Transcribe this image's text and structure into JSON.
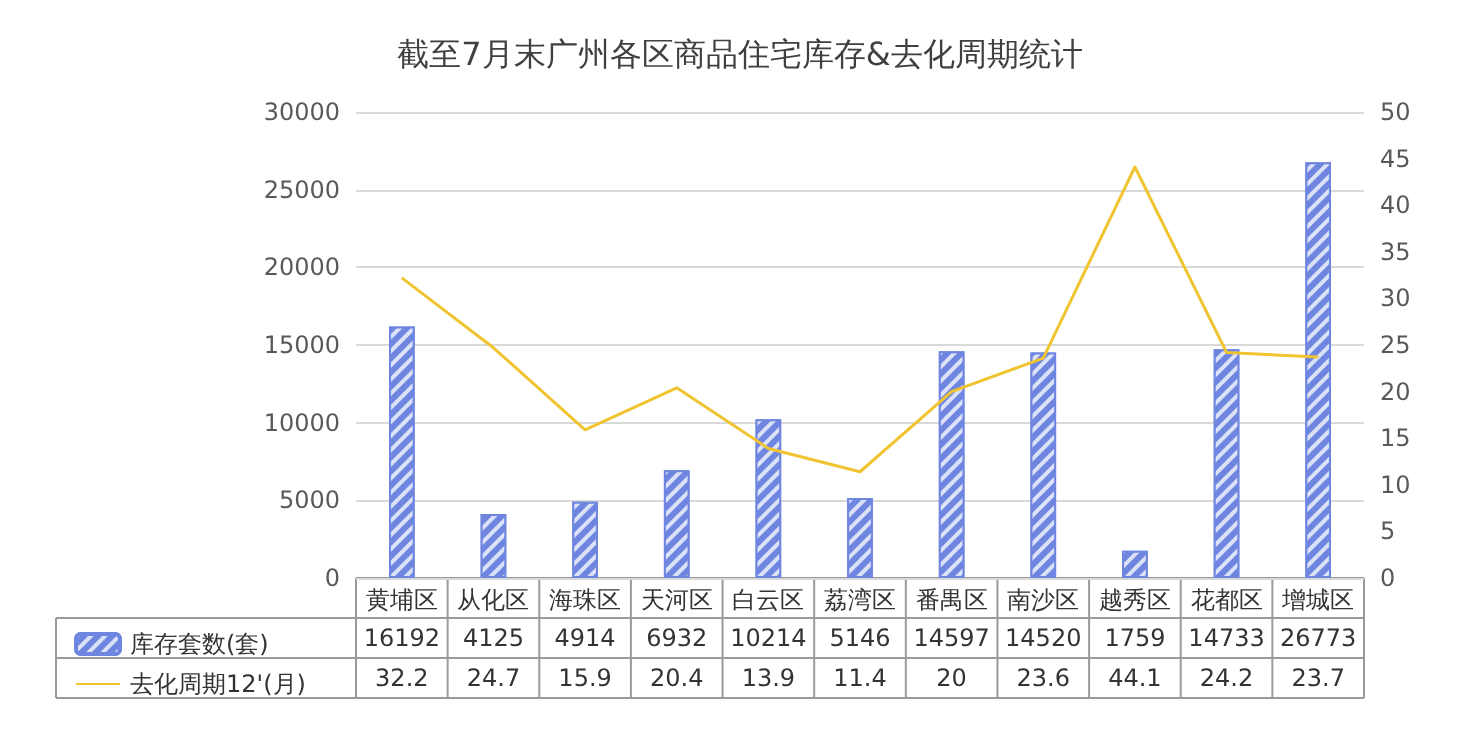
{
  "chart_data": {
    "type": "bar",
    "title": "截至7月末广州各区商品住宅库存&去化周期统计",
    "categories": [
      "黄埔区",
      "从化区",
      "海珠区",
      "天河区",
      "白云区",
      "荔湾区",
      "番禺区",
      "南沙区",
      "越秀区",
      "花都区",
      "增城区"
    ],
    "series": [
      {
        "name": "库存套数(套)",
        "color": "#6f86e0",
        "values": [
          16192,
          4125,
          4914,
          6932,
          10214,
          5146,
          14597,
          14520,
          1759,
          14733,
          26773
        ]
      },
      {
        "name": "去化周期12'(月)",
        "type": "line",
        "axis": "y2",
        "color": "#f0c430",
        "values": [
          32.2,
          24.7,
          15.9,
          20.4,
          13.9,
          11.4,
          20,
          23.6,
          44.1,
          24.2,
          23.7
        ]
      }
    ],
    "ylim": [
      0,
      30000
    ],
    "yticks": [
      0,
      5000,
      10000,
      15000,
      20000,
      25000,
      30000
    ],
    "y2lim": [
      0,
      50
    ],
    "y2ticks": [
      0,
      5,
      10,
      15,
      20,
      25,
      30,
      35,
      40,
      45,
      50
    ],
    "grid": "y",
    "legend": "bottom left",
    "marker": "none",
    "data_labels": true
  }
}
